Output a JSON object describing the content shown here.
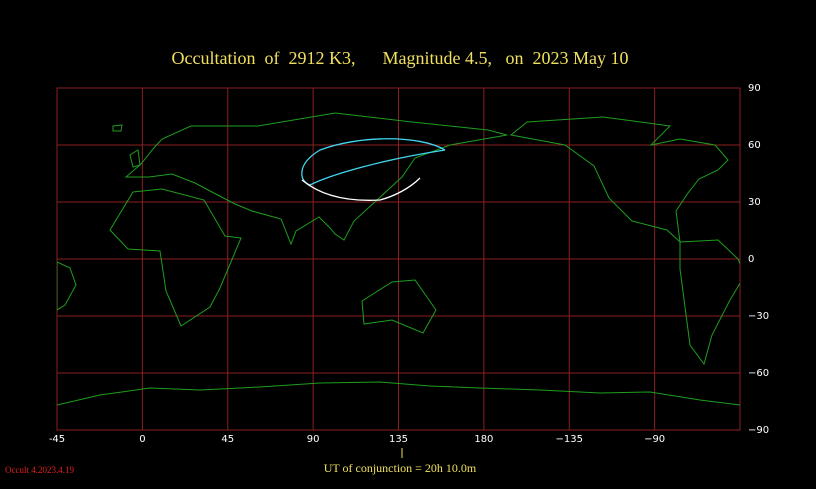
{
  "chart_data": {
    "type": "map",
    "title": "Occultation  of  2912 K3,      Magnitude 4.5,   on  2023 May 10",
    "xlim": [
      -45,
      315
    ],
    "ylim": [
      -90,
      90
    ],
    "xticks": [
      -45,
      0,
      45,
      90,
      135,
      180,
      {
        "value": 225,
        "label": "−135"
      },
      {
        "value": 270,
        "label": "−90"
      }
    ],
    "yticks": [
      90,
      60,
      30,
      0,
      {
        "value": -30,
        "label": "−30"
      },
      {
        "value": -60,
        "label": "−60"
      },
      {
        "value": -90,
        "label": "−90"
      }
    ],
    "grid": true,
    "grid_color": "#8b2020",
    "coast_color": "#1e9e1e",
    "conjunction": "UT of conjunction = 20h 10.0m",
    "version": "Occult 4.2023.4.19"
  }
}
